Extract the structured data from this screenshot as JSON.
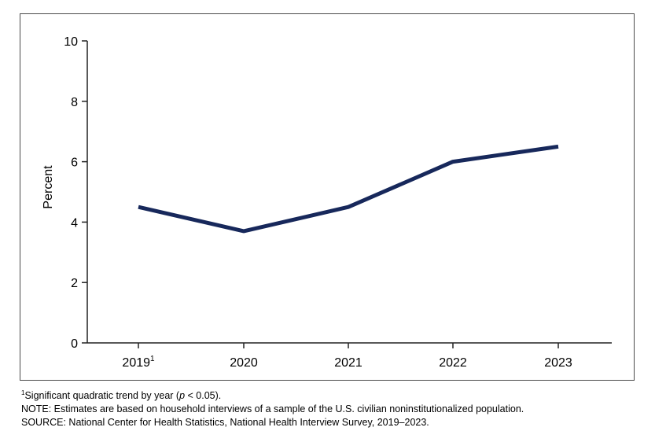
{
  "chart_data": {
    "type": "line",
    "categories": [
      "2019",
      "2020",
      "2021",
      "2022",
      "2023"
    ],
    "category_superscripts": [
      "1",
      "",
      "",
      "",
      ""
    ],
    "series": [
      {
        "values": [
          4.5,
          3.7,
          4.5,
          6.0,
          6.5
        ]
      }
    ],
    "ylabel": "Percent",
    "xlabel": "",
    "title": "",
    "ylim": [
      0,
      10
    ],
    "yticks": [
      0,
      2,
      4,
      6,
      8,
      10
    ],
    "grid": false,
    "line_color": "#17285b"
  },
  "notes": {
    "footnote_marker": "1",
    "footnote_text": "Significant quadratic trend by year (",
    "footnote_p": "p",
    "footnote_end": " < 0.05).",
    "note": "NOTE: Estimates are based on household interviews of a sample of the U.S. civilian noninstitutionalized population.",
    "source": "SOURCE: National Center for Health Statistics, National Health Interview Survey, 2019–2023."
  }
}
